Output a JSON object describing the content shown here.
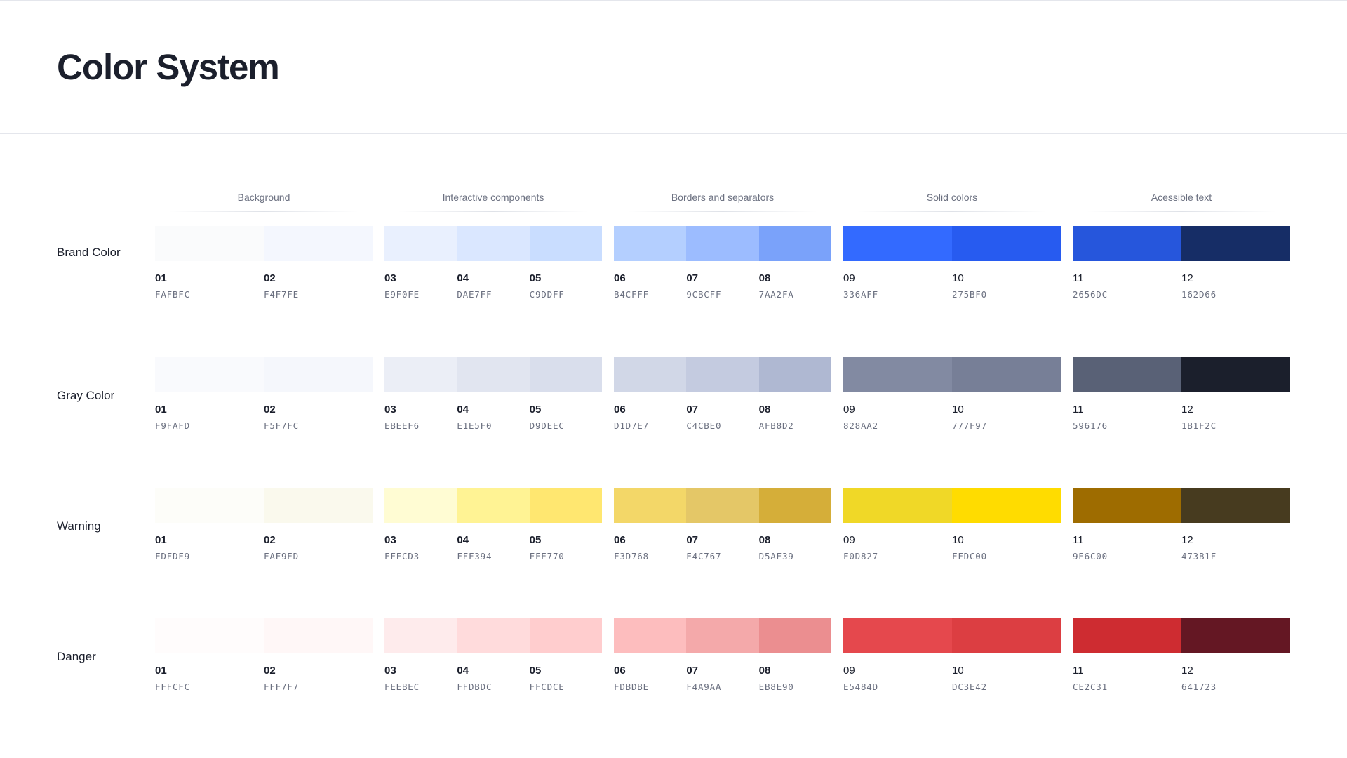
{
  "page": {
    "title": "Color System"
  },
  "groups": [
    "Background",
    "Interactive components",
    "Borders and separators",
    "Solid colors",
    "Acessible text"
  ],
  "rows": [
    {
      "label": "Brand Color",
      "swatches": [
        {
          "num": "01",
          "hex": "FAFBFC"
        },
        {
          "num": "02",
          "hex": "F4F7FE"
        },
        {
          "num": "03",
          "hex": "E9F0FE"
        },
        {
          "num": "04",
          "hex": "DAE7FF"
        },
        {
          "num": "05",
          "hex": "C9DDFF"
        },
        {
          "num": "06",
          "hex": "B4CFFF"
        },
        {
          "num": "07",
          "hex": "9CBCFF"
        },
        {
          "num": "08",
          "hex": "7AA2FA"
        },
        {
          "num": "09",
          "hex": "336AFF"
        },
        {
          "num": "10",
          "hex": "275BF0"
        },
        {
          "num": "11",
          "hex": "2656DC"
        },
        {
          "num": "12",
          "hex": "162D66"
        }
      ]
    },
    {
      "label": "Gray Color",
      "swatches": [
        {
          "num": "01",
          "hex": "F9FAFD"
        },
        {
          "num": "02",
          "hex": "F5F7FC"
        },
        {
          "num": "03",
          "hex": "EBEEF6"
        },
        {
          "num": "04",
          "hex": "E1E5F0"
        },
        {
          "num": "05",
          "hex": "D9DEEC"
        },
        {
          "num": "06",
          "hex": "D1D7E7"
        },
        {
          "num": "07",
          "hex": "C4CBE0"
        },
        {
          "num": "08",
          "hex": "AFB8D2"
        },
        {
          "num": "09",
          "hex": "828AA2"
        },
        {
          "num": "10",
          "hex": "777F97"
        },
        {
          "num": "11",
          "hex": "596176"
        },
        {
          "num": "12",
          "hex": "1B1F2C"
        }
      ]
    },
    {
      "label": "Warning",
      "swatches": [
        {
          "num": "01",
          "hex": "FDFDF9"
        },
        {
          "num": "02",
          "hex": "FAF9ED"
        },
        {
          "num": "03",
          "hex": "FFFCD3"
        },
        {
          "num": "04",
          "hex": "FFF394"
        },
        {
          "num": "05",
          "hex": "FFE770"
        },
        {
          "num": "06",
          "hex": "F3D768"
        },
        {
          "num": "07",
          "hex": "E4C767"
        },
        {
          "num": "08",
          "hex": "D5AE39"
        },
        {
          "num": "09",
          "hex": "F0D827"
        },
        {
          "num": "10",
          "hex": "FFDC00"
        },
        {
          "num": "11",
          "hex": "9E6C00"
        },
        {
          "num": "12",
          "hex": "473B1F"
        }
      ]
    },
    {
      "label": "Danger",
      "swatches": [
        {
          "num": "01",
          "hex": "FFFCFC"
        },
        {
          "num": "02",
          "hex": "FFF7F7"
        },
        {
          "num": "03",
          "hex": "FEEBEC"
        },
        {
          "num": "04",
          "hex": "FFDBDC"
        },
        {
          "num": "05",
          "hex": "FFCDCE"
        },
        {
          "num": "06",
          "hex": "FDBDBE"
        },
        {
          "num": "07",
          "hex": "F4A9AA"
        },
        {
          "num": "08",
          "hex": "EB8E90"
        },
        {
          "num": "09",
          "hex": "E5484D"
        },
        {
          "num": "10",
          "hex": "DC3E42"
        },
        {
          "num": "11",
          "hex": "CE2C31"
        },
        {
          "num": "12",
          "hex": "641723"
        }
      ]
    }
  ]
}
